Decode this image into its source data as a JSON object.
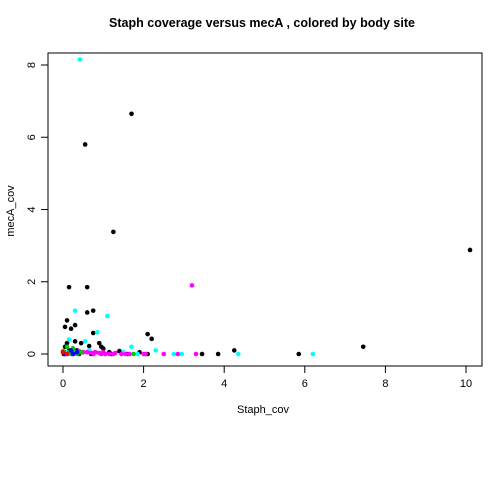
{
  "chart_data": {
    "type": "scatter",
    "title": "Staph coverage versus mecA , colored by body site",
    "xlabel": "Staph_cov",
    "ylabel": "mecA_cov",
    "xlim": [
      0,
      10
    ],
    "ylim": [
      0,
      8
    ],
    "xticks": [
      "0",
      "2",
      "4",
      "6",
      "8",
      "10"
    ],
    "yticks": [
      "0",
      "2",
      "4",
      "6",
      "8"
    ],
    "grid": false,
    "legend": "none",
    "series": [
      {
        "color": "#000000",
        "points": [
          [
            0.55,
            5.8
          ],
          [
            1.7,
            6.65
          ],
          [
            1.25,
            3.38
          ],
          [
            10.1,
            2.88
          ],
          [
            0.15,
            1.85
          ],
          [
            0.6,
            1.85
          ],
          [
            0.75,
            1.2
          ],
          [
            0.6,
            1.15
          ],
          [
            0.1,
            0.93
          ],
          [
            0.05,
            0.75
          ],
          [
            0.2,
            0.7
          ],
          [
            0.3,
            0.8
          ],
          [
            0.75,
            0.58
          ],
          [
            2.1,
            0.55
          ],
          [
            2.2,
            0.42
          ],
          [
            0.3,
            0.35
          ],
          [
            0.9,
            0.3
          ],
          [
            0.1,
            0.3
          ],
          [
            0.45,
            0.3
          ],
          [
            0.05,
            0.2
          ],
          [
            0.65,
            0.22
          ],
          [
            0.95,
            0.2
          ],
          [
            7.45,
            0.2
          ],
          [
            1.0,
            0.15
          ],
          [
            0.25,
            0.15
          ],
          [
            0.15,
            0.1
          ],
          [
            0.35,
            0.1
          ],
          [
            1.4,
            0.08
          ],
          [
            4.25,
            0.1
          ],
          [
            0.05,
            0.05
          ],
          [
            0.2,
            0.05
          ],
          [
            0.5,
            0.05
          ],
          [
            0.8,
            0.05
          ],
          [
            1.15,
            0.05
          ],
          [
            1.9,
            0.05
          ],
          [
            0.4,
            0.0
          ],
          [
            0.7,
            0.0
          ],
          [
            1.2,
            0.0
          ],
          [
            1.6,
            0.0
          ],
          [
            2.1,
            0.0
          ],
          [
            3.45,
            0.0
          ],
          [
            3.85,
            0.0
          ],
          [
            5.85,
            0.0
          ],
          [
            0.02,
            0.0
          ]
        ]
      },
      {
        "color": "#00ffff",
        "points": [
          [
            0.42,
            8.15
          ],
          [
            0.3,
            1.2
          ],
          [
            1.1,
            1.05
          ],
          [
            0.85,
            0.6
          ],
          [
            0.15,
            0.4
          ],
          [
            0.55,
            0.35
          ],
          [
            1.7,
            0.2
          ],
          [
            2.3,
            0.1
          ],
          [
            2.75,
            0.0
          ],
          [
            2.95,
            0.0
          ],
          [
            4.35,
            0.0
          ],
          [
            6.2,
            0.0
          ],
          [
            1.5,
            0.05
          ],
          [
            0.1,
            0.05
          ],
          [
            0.65,
            0.1
          ],
          [
            1.85,
            0.0
          ]
        ]
      },
      {
        "color": "#ff00ff",
        "points": [
          [
            3.2,
            1.9
          ],
          [
            0.4,
            0.08
          ],
          [
            0.5,
            0.05
          ],
          [
            0.6,
            0.05
          ],
          [
            0.7,
            0.03
          ],
          [
            0.8,
            0.05
          ],
          [
            0.9,
            0.03
          ],
          [
            1.0,
            0.05
          ],
          [
            1.05,
            0.0
          ],
          [
            1.15,
            0.0
          ],
          [
            1.25,
            0.0
          ],
          [
            1.3,
            0.03
          ],
          [
            1.45,
            0.0
          ],
          [
            1.55,
            0.0
          ],
          [
            1.65,
            0.0
          ],
          [
            2.0,
            0.0
          ],
          [
            2.05,
            0.0
          ],
          [
            2.5,
            0.0
          ],
          [
            2.85,
            0.0
          ],
          [
            3.3,
            0.0
          ],
          [
            0.25,
            0.0
          ],
          [
            0.1,
            0.0
          ],
          [
            0.75,
            0.0
          ],
          [
            0.95,
            0.0
          ]
        ]
      },
      {
        "color": "#00cd00",
        "points": [
          [
            0.1,
            0.2
          ],
          [
            0.25,
            0.15
          ],
          [
            0.3,
            0.05
          ],
          [
            0.15,
            0.05
          ],
          [
            0.0,
            0.08
          ],
          [
            0.35,
            0.0
          ],
          [
            0.2,
            0.0
          ],
          [
            1.75,
            0.0
          ],
          [
            0.05,
            0.0
          ],
          [
            0.45,
            0.05
          ]
        ]
      },
      {
        "color": "#0000ff",
        "points": [
          [
            0.2,
            0.1
          ],
          [
            0.35,
            0.05
          ],
          [
            0.05,
            0.0
          ],
          [
            0.25,
            0.0
          ]
        ]
      },
      {
        "color": "#ff0000",
        "points": [
          [
            0.0,
            0.05
          ],
          [
            0.1,
            0.0
          ]
        ]
      }
    ]
  }
}
